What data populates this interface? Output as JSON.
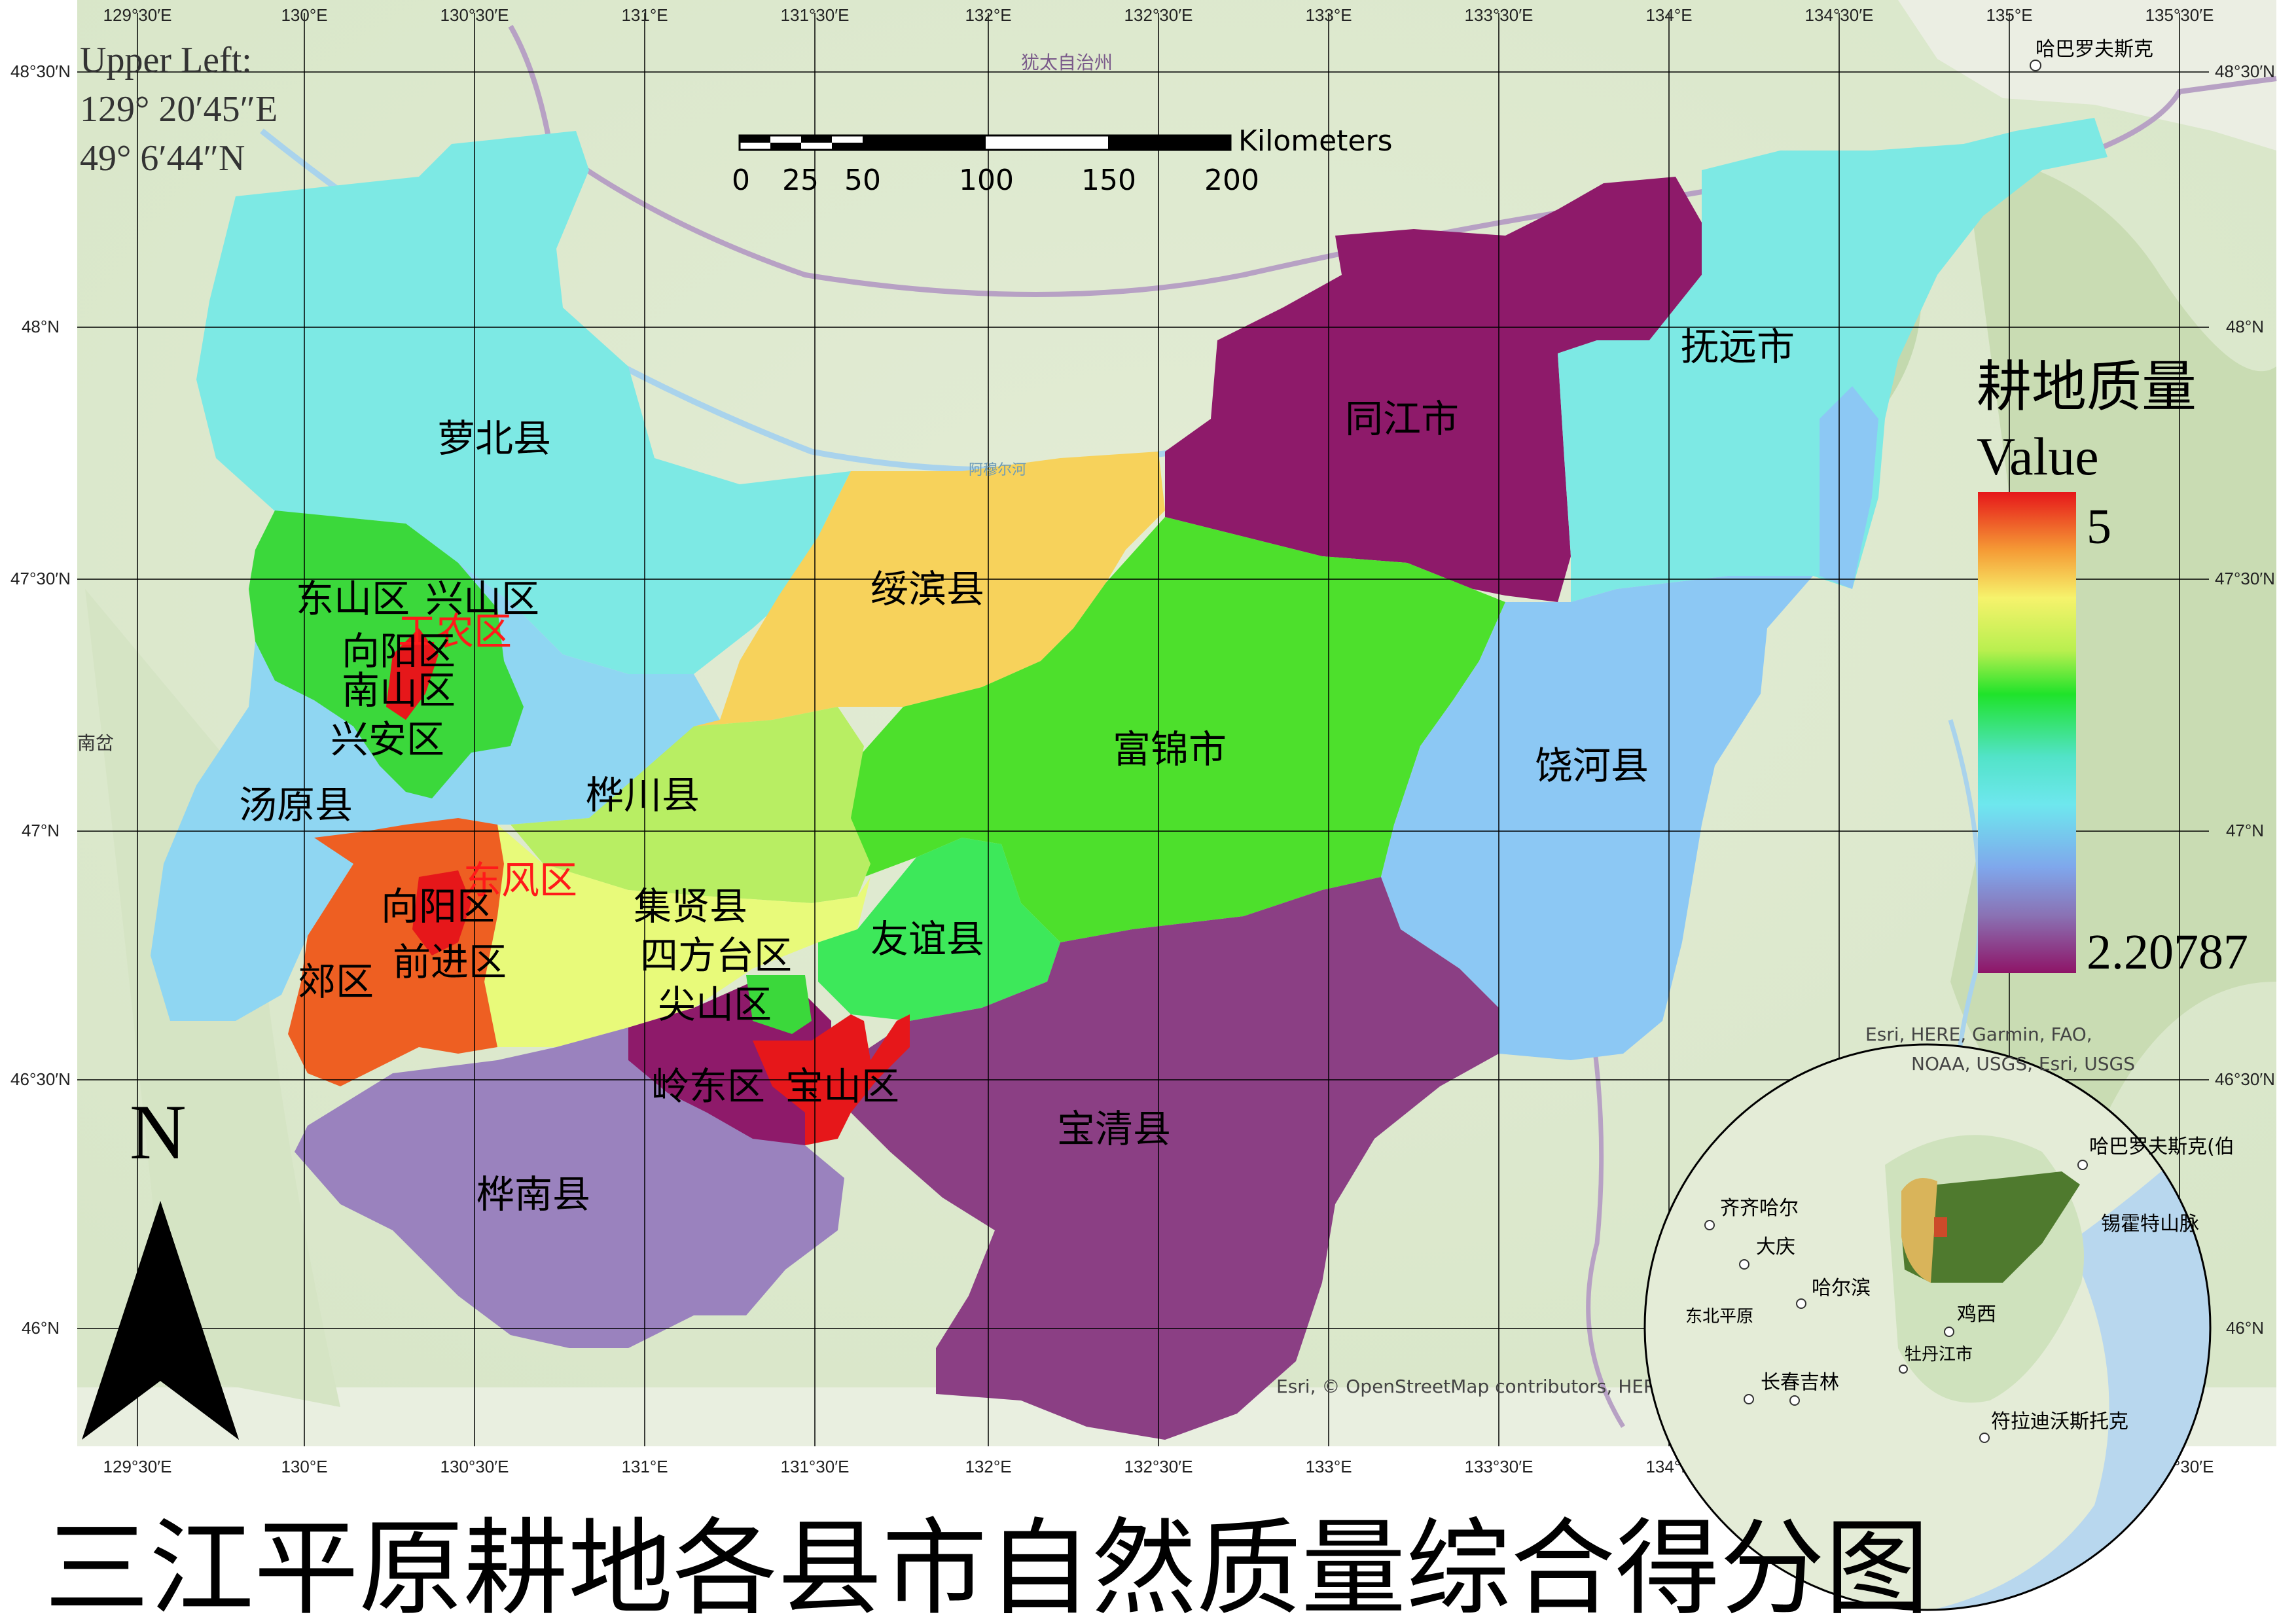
{
  "title": "三江平原耕地各县市自然质量综合得分图",
  "upper_left": {
    "heading": "Upper Left:",
    "lon": "129° 20′45″E",
    "lat": "49° 6′44″N"
  },
  "scale_bar": {
    "unit": "Kilometers",
    "ticks": [
      "0",
      "25",
      "50",
      "100",
      "150",
      "200"
    ]
  },
  "north_arrow": {
    "label": "N",
    "icon": "north-arrow-icon"
  },
  "legend": {
    "title": "耕地质量",
    "subtitle": "Value",
    "max": "5",
    "min": "2.20787",
    "ramp": [
      "#8e1467",
      "#8a2a78",
      "#9b80be",
      "#6fa3e6",
      "#5fe0e8",
      "#2ec45b",
      "#3bd83b",
      "#c8f05a",
      "#f4f46c",
      "#f9b43a",
      "#ef4b1e",
      "#e6171a"
    ]
  },
  "lon_labels": [
    "129°30′E",
    "130°E",
    "130°30′E",
    "131°E",
    "131°30′E",
    "132°E",
    "132°30′E",
    "133°E",
    "133°30′E",
    "134°E",
    "134°30′E",
    "135°E",
    "135°30′E"
  ],
  "lat_labels": [
    "48°30′N",
    "48°N",
    "47°30′N",
    "47°N",
    "46°30′N",
    "46°N"
  ],
  "basemap_labels": {
    "top_region": "犹太自治州",
    "city_top_right": "哈巴罗夫斯克",
    "river": "阿穆尔河",
    "left_edge": "南岔",
    "attribution": "Esri, © OpenStreetMap contributors, HERE"
  },
  "regions": [
    {
      "name": "萝北县",
      "color": "#7de9e4"
    },
    {
      "name": "同江市",
      "color": "#8e1a6a"
    },
    {
      "name": "抚远市",
      "color": "#7de9e4"
    },
    {
      "name": "绥滨县",
      "color": "#f7d25b"
    },
    {
      "name": "富锦市",
      "color": "#4de02c"
    },
    {
      "name": "饶河县",
      "color": "#8cc8f4"
    },
    {
      "name": "汤原县",
      "color": "#8fd6f2"
    },
    {
      "name": "桦川县",
      "color": "#b8ee63"
    },
    {
      "name": "集贤县",
      "color": "#e8fa7a"
    },
    {
      "name": "友谊县",
      "color": "#3de85a"
    },
    {
      "name": "宝清县",
      "color": "#8b3f84"
    },
    {
      "name": "桦南县",
      "color": "#9a82be"
    },
    {
      "name": "郊区",
      "color": "#ee5f22"
    },
    {
      "name": "东山区",
      "color": "#3bd83b"
    },
    {
      "name": "兴山区",
      "color": "#3bd83b"
    }
  ],
  "district_labels": {
    "dongshan": "东山区",
    "xingshan": "兴山区",
    "gongnong": "工农区",
    "xiangyang1": "向阳区",
    "nanshan": "南山区",
    "xingan": "兴安区",
    "dongfeng": "东风区",
    "xiangyang2": "向阳区",
    "qianjin": "前进区",
    "sifangtai": "四方台区",
    "jianshan": "尖山区",
    "lingdong": "岭东区",
    "baoshan": "宝山区"
  },
  "inset": {
    "attribution_line1": "Esri, HERE, Garmin, FAO,",
    "attribution_line2": "NOAA, USGS, Esri, USGS",
    "places": [
      "齐齐哈尔",
      "大庆",
      "哈尔滨",
      "东北平原",
      "长春吉林",
      "牡丹江市",
      "鸡西",
      "哈巴罗夫斯克(伯",
      "锡霍特山脉",
      "符拉迪沃斯托克"
    ]
  }
}
